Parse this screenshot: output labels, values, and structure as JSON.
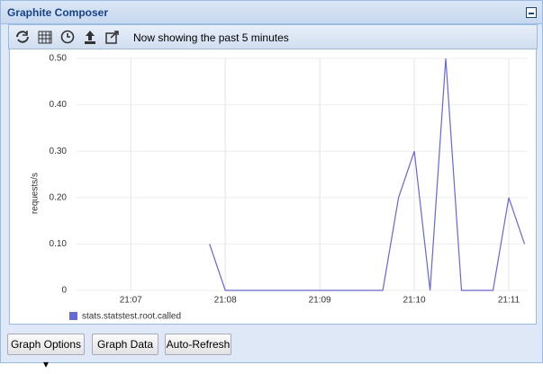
{
  "window": {
    "title": "Graphite Composer",
    "status": "Now showing the past 5 minutes",
    "buttons": [
      "Graph Options",
      "Graph Data",
      "Auto-Refresh"
    ]
  },
  "chart_data": {
    "type": "line",
    "ylabel": "requests/s",
    "x": [
      "21:07:50",
      "21:08:00",
      "21:08:10",
      "21:08:20",
      "21:08:30",
      "21:08:40",
      "21:08:50",
      "21:09:00",
      "21:09:10",
      "21:09:20",
      "21:09:30",
      "21:09:40",
      "21:09:50",
      "21:10:00",
      "21:10:10",
      "21:10:20",
      "21:10:30",
      "21:10:40",
      "21:10:50",
      "21:11:00",
      "21:11:10"
    ],
    "series": [
      {
        "name": "stats.statstest.root.called",
        "color": "#6666dd",
        "values": [
          0.1,
          0,
          0,
          0,
          0,
          0,
          0,
          0,
          0,
          0,
          0,
          0,
          0.2,
          0.3,
          0,
          0.5,
          0,
          0,
          0,
          0.2,
          0.1
        ]
      }
    ],
    "xlim": [
      "21:06:25",
      "21:11:12"
    ],
    "xticks": [
      "21:07",
      "21:08",
      "21:09",
      "21:10",
      "21:11"
    ],
    "ylim": [
      0,
      0.5
    ],
    "yticks": [
      0,
      {
        "value": 0.1,
        "label": "0.10"
      },
      {
        "value": 0.2,
        "label": "0.20"
      },
      {
        "value": 0.3,
        "label": "0.30"
      },
      {
        "value": 0.4,
        "label": "0.40"
      },
      {
        "value": 0.5,
        "label": "0.50"
      }
    ],
    "grid": true,
    "legend": "bottom-left"
  }
}
